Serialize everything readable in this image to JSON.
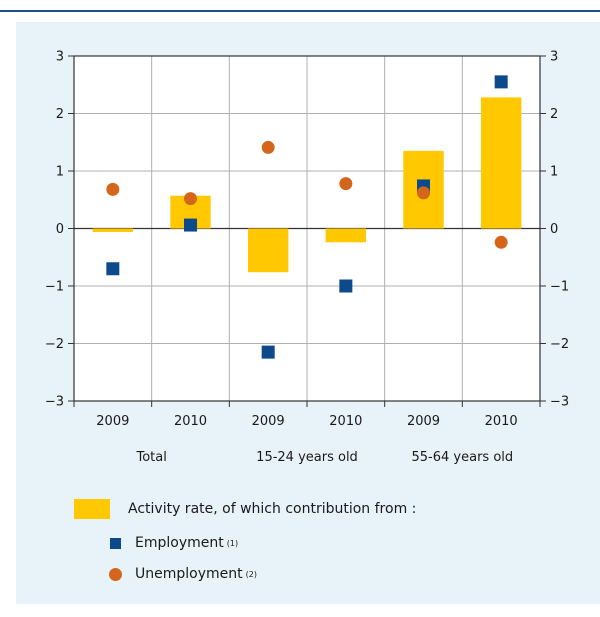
{
  "chart_data": {
    "type": "bar",
    "categories": [
      "2009",
      "2010",
      "2009",
      "2010",
      "2009",
      "2010"
    ],
    "groups": [
      "Total",
      "15-24 years old",
      "55-64 years old"
    ],
    "ylim": [
      -3,
      3
    ],
    "yticks": [
      "3",
      "2",
      "1",
      "0",
      "−1",
      "−2",
      "−3"
    ],
    "ytick_values": [
      3,
      2,
      1,
      0,
      -1,
      -2,
      -3
    ],
    "grid": true,
    "series": [
      {
        "name": "Activity rate, of which contribution from :",
        "kind": "bar",
        "color": "#ffc800",
        "values": [
          -0.06,
          0.57,
          -0.76,
          -0.24,
          1.35,
          2.28
        ]
      },
      {
        "name": "Employment",
        "kind": "square",
        "color": "#0d4a8c",
        "values": [
          -0.7,
          0.06,
          -2.15,
          -1.0,
          0.74,
          2.55
        ]
      },
      {
        "name": "Unemployment",
        "kind": "dot",
        "color": "#d4661c",
        "values": [
          0.68,
          0.52,
          1.41,
          0.78,
          0.62,
          -0.24
        ]
      }
    ]
  },
  "legend": {
    "bar_label": "Activity rate, of which contribution from :",
    "employment_label": "Employment",
    "employment_note": "(1)",
    "unemployment_label": "Unemployment",
    "unemployment_note": "(2)"
  }
}
